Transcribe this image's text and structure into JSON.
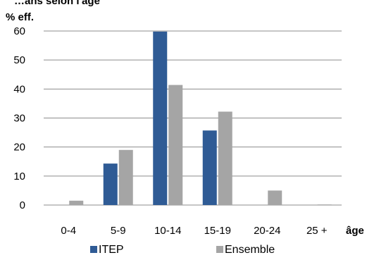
{
  "chart_data": {
    "type": "bar",
    "title": "…ans selon l'âge",
    "ylabel": "% eff.",
    "xlabel": "âge",
    "categories": [
      "0-4",
      "5-9",
      "10-14",
      "15-19",
      "20-24",
      "25 +"
    ],
    "series": [
      {
        "name": "ITEP",
        "values": [
          0,
          14.3,
          59.8,
          25.7,
          0,
          0
        ],
        "color": "#2f5b95"
      },
      {
        "name": "Ensemble",
        "values": [
          1.5,
          19.0,
          41.4,
          32.2,
          5.0,
          0.2
        ],
        "color": "#a5a5a5"
      }
    ],
    "yticks": [
      0,
      10,
      20,
      30,
      40,
      50,
      60
    ],
    "ylim": [
      0,
      60
    ],
    "grid": true,
    "legend": "bottom"
  }
}
